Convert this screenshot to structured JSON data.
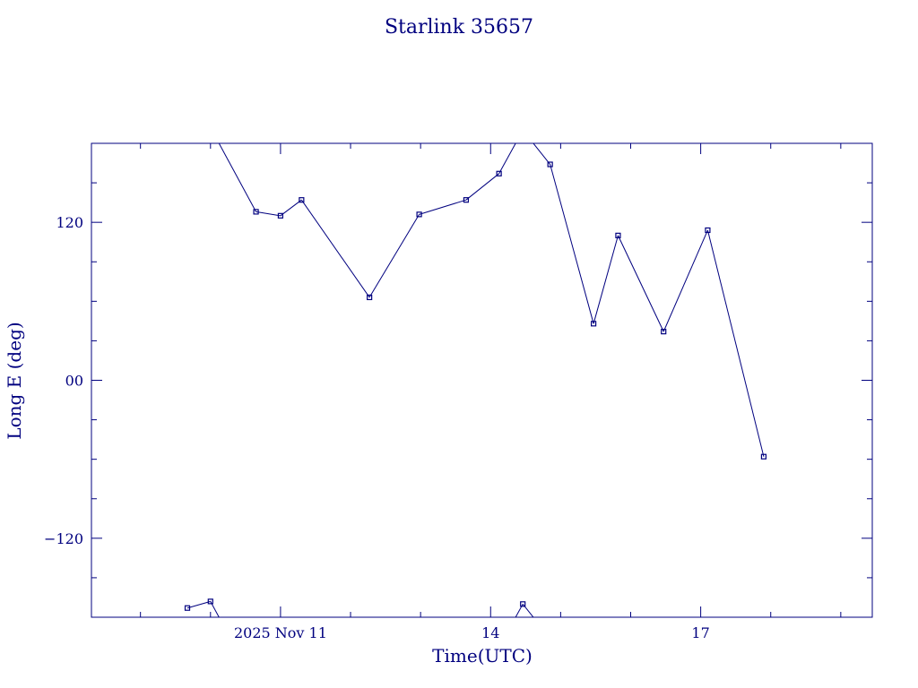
{
  "chart_data": {
    "type": "line",
    "title": "Starlink 35657",
    "xlabel": "Time(UTC)",
    "ylabel": "Long E (deg)",
    "x_unit": "days (Nov 2025)",
    "xlim": [
      8.3,
      19.45
    ],
    "ylim": [
      -180,
      180
    ],
    "wrap": [
      -180,
      180
    ],
    "x_ticks": [
      {
        "value": 11,
        "label": "2025 Nov 11"
      },
      {
        "value": 14,
        "label": "14"
      },
      {
        "value": 17,
        "label": "17"
      }
    ],
    "x_minor_step": 1,
    "y_ticks": [
      {
        "value": 120,
        "label": "120"
      },
      {
        "value": 0,
        "label": "00"
      },
      {
        "value": -120,
        "label": "−120"
      }
    ],
    "y_minor_step": 30,
    "color": "#00007f",
    "series": [
      {
        "x": [
          9.67,
          10.0,
          10.65,
          11.0,
          11.3,
          12.27,
          12.98,
          13.65,
          14.12,
          14.46,
          14.85,
          15.47,
          15.82,
          16.47,
          17.1,
          17.9
        ],
        "y": [
          -173,
          -168,
          128,
          125,
          137,
          63,
          126,
          137,
          157,
          -170,
          164,
          43,
          110,
          37,
          114,
          -58
        ]
      }
    ]
  }
}
